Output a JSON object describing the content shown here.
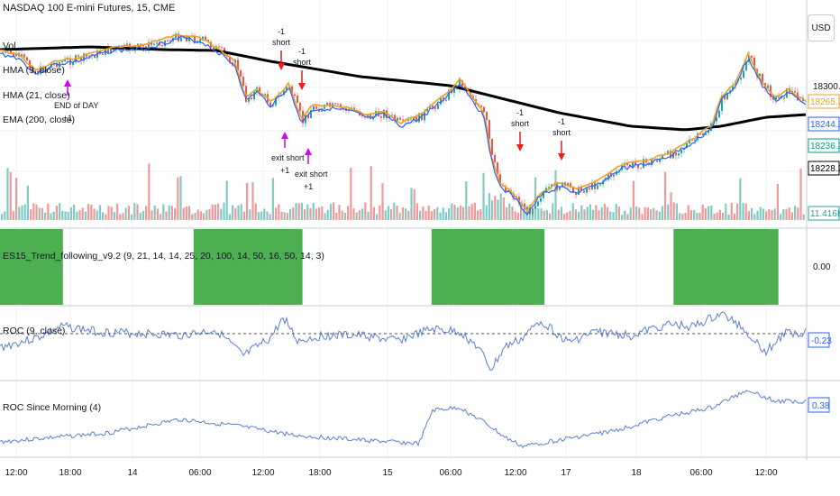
{
  "header": {
    "title": "NASDAQ 100 E-mini Futures, 15, CME",
    "currency": "USD"
  },
  "indicators": {
    "vol": "Vol",
    "hma9": "HMA (9, close)",
    "hma21": "HMA (21, close)",
    "ema200": "EMA (200, close)"
  },
  "panes": {
    "strategy": {
      "label": "ES15_Trend_following_v9.2 (9, 21, 14, 14, 25, 20, 100, 14, 50, 16, 50, 14, 3)",
      "value": "0.00"
    },
    "roc": {
      "label": "ROC (9, close)",
      "value": "-0.23"
    },
    "roc_morning": {
      "label": "ROC Since Morning (4)",
      "value": "0.38"
    }
  },
  "price_boxes": [
    {
      "text": "18265.70",
      "color": "#f0a020"
    },
    {
      "text": "18244.35",
      "color": "#2962ff"
    },
    {
      "text": "18236.25",
      "color": "#089981"
    },
    {
      "text": "18228.27",
      "color": "#000000"
    },
    {
      "text": "11.416K",
      "color": "#26a69a"
    }
  ],
  "price_axis": [
    "18300.00"
  ],
  "x_ticks": [
    "12:00",
    "18:00",
    "14",
    "06:00",
    "12:00",
    "18:00",
    "15",
    "06:00",
    "12:00",
    "17",
    "18",
    "06:00",
    "12:00"
  ],
  "signals": [
    {
      "kind": "exit",
      "text1": "END of DAY",
      "text2": "+1"
    },
    {
      "kind": "short",
      "text1": "-1",
      "text2": "short"
    },
    {
      "kind": "short",
      "text1": "-1",
      "text2": "short"
    },
    {
      "kind": "exit",
      "text1": "exit short",
      "text2": "+1"
    },
    {
      "kind": "exit",
      "text1": "exit short",
      "text2": "+1"
    },
    {
      "kind": "short",
      "text1": "-1",
      "text2": "short"
    },
    {
      "kind": "short",
      "text1": "-1",
      "text2": "short"
    }
  ],
  "colors": {
    "up": "#26a69a",
    "down": "#ef5350",
    "hma9": "#2962ff",
    "hma21": "#f0a020",
    "ema200": "#000000",
    "signal_short": "#e91e1e",
    "signal_exit": "#d500f9",
    "strategy_fill": "#4caf50",
    "roc": "#5b7fd6"
  },
  "chart_data": [
    {
      "type": "candlestick",
      "title": "NASDAQ 100 E-mini Futures, 15, CME",
      "series": [
        {
          "name": "HMA (9, close)"
        },
        {
          "name": "HMA (21, close)"
        },
        {
          "name": "EMA (200, close)"
        },
        {
          "name": "Vol"
        }
      ],
      "last_values": {
        "HMA (21, close)": 18265.7,
        "HMA (9, close)": 18244.35,
        "close": 18236.25,
        "EMA (200, close)": 18228.27,
        "Vol": "11.416K"
      }
    },
    {
      "type": "area",
      "title": "ES15_Trend_following_v9.2",
      "value": 0.0,
      "active_fraction_ranges": [
        [
          0.0,
          0.078
        ],
        [
          0.24,
          0.375
        ],
        [
          0.535,
          0.675
        ],
        [
          0.835,
          0.965
        ]
      ]
    },
    {
      "type": "line",
      "title": "ROC (9, close)",
      "last_value": -0.23
    },
    {
      "type": "line",
      "title": "ROC Since Morning (4)",
      "last_value": 0.38
    }
  ]
}
